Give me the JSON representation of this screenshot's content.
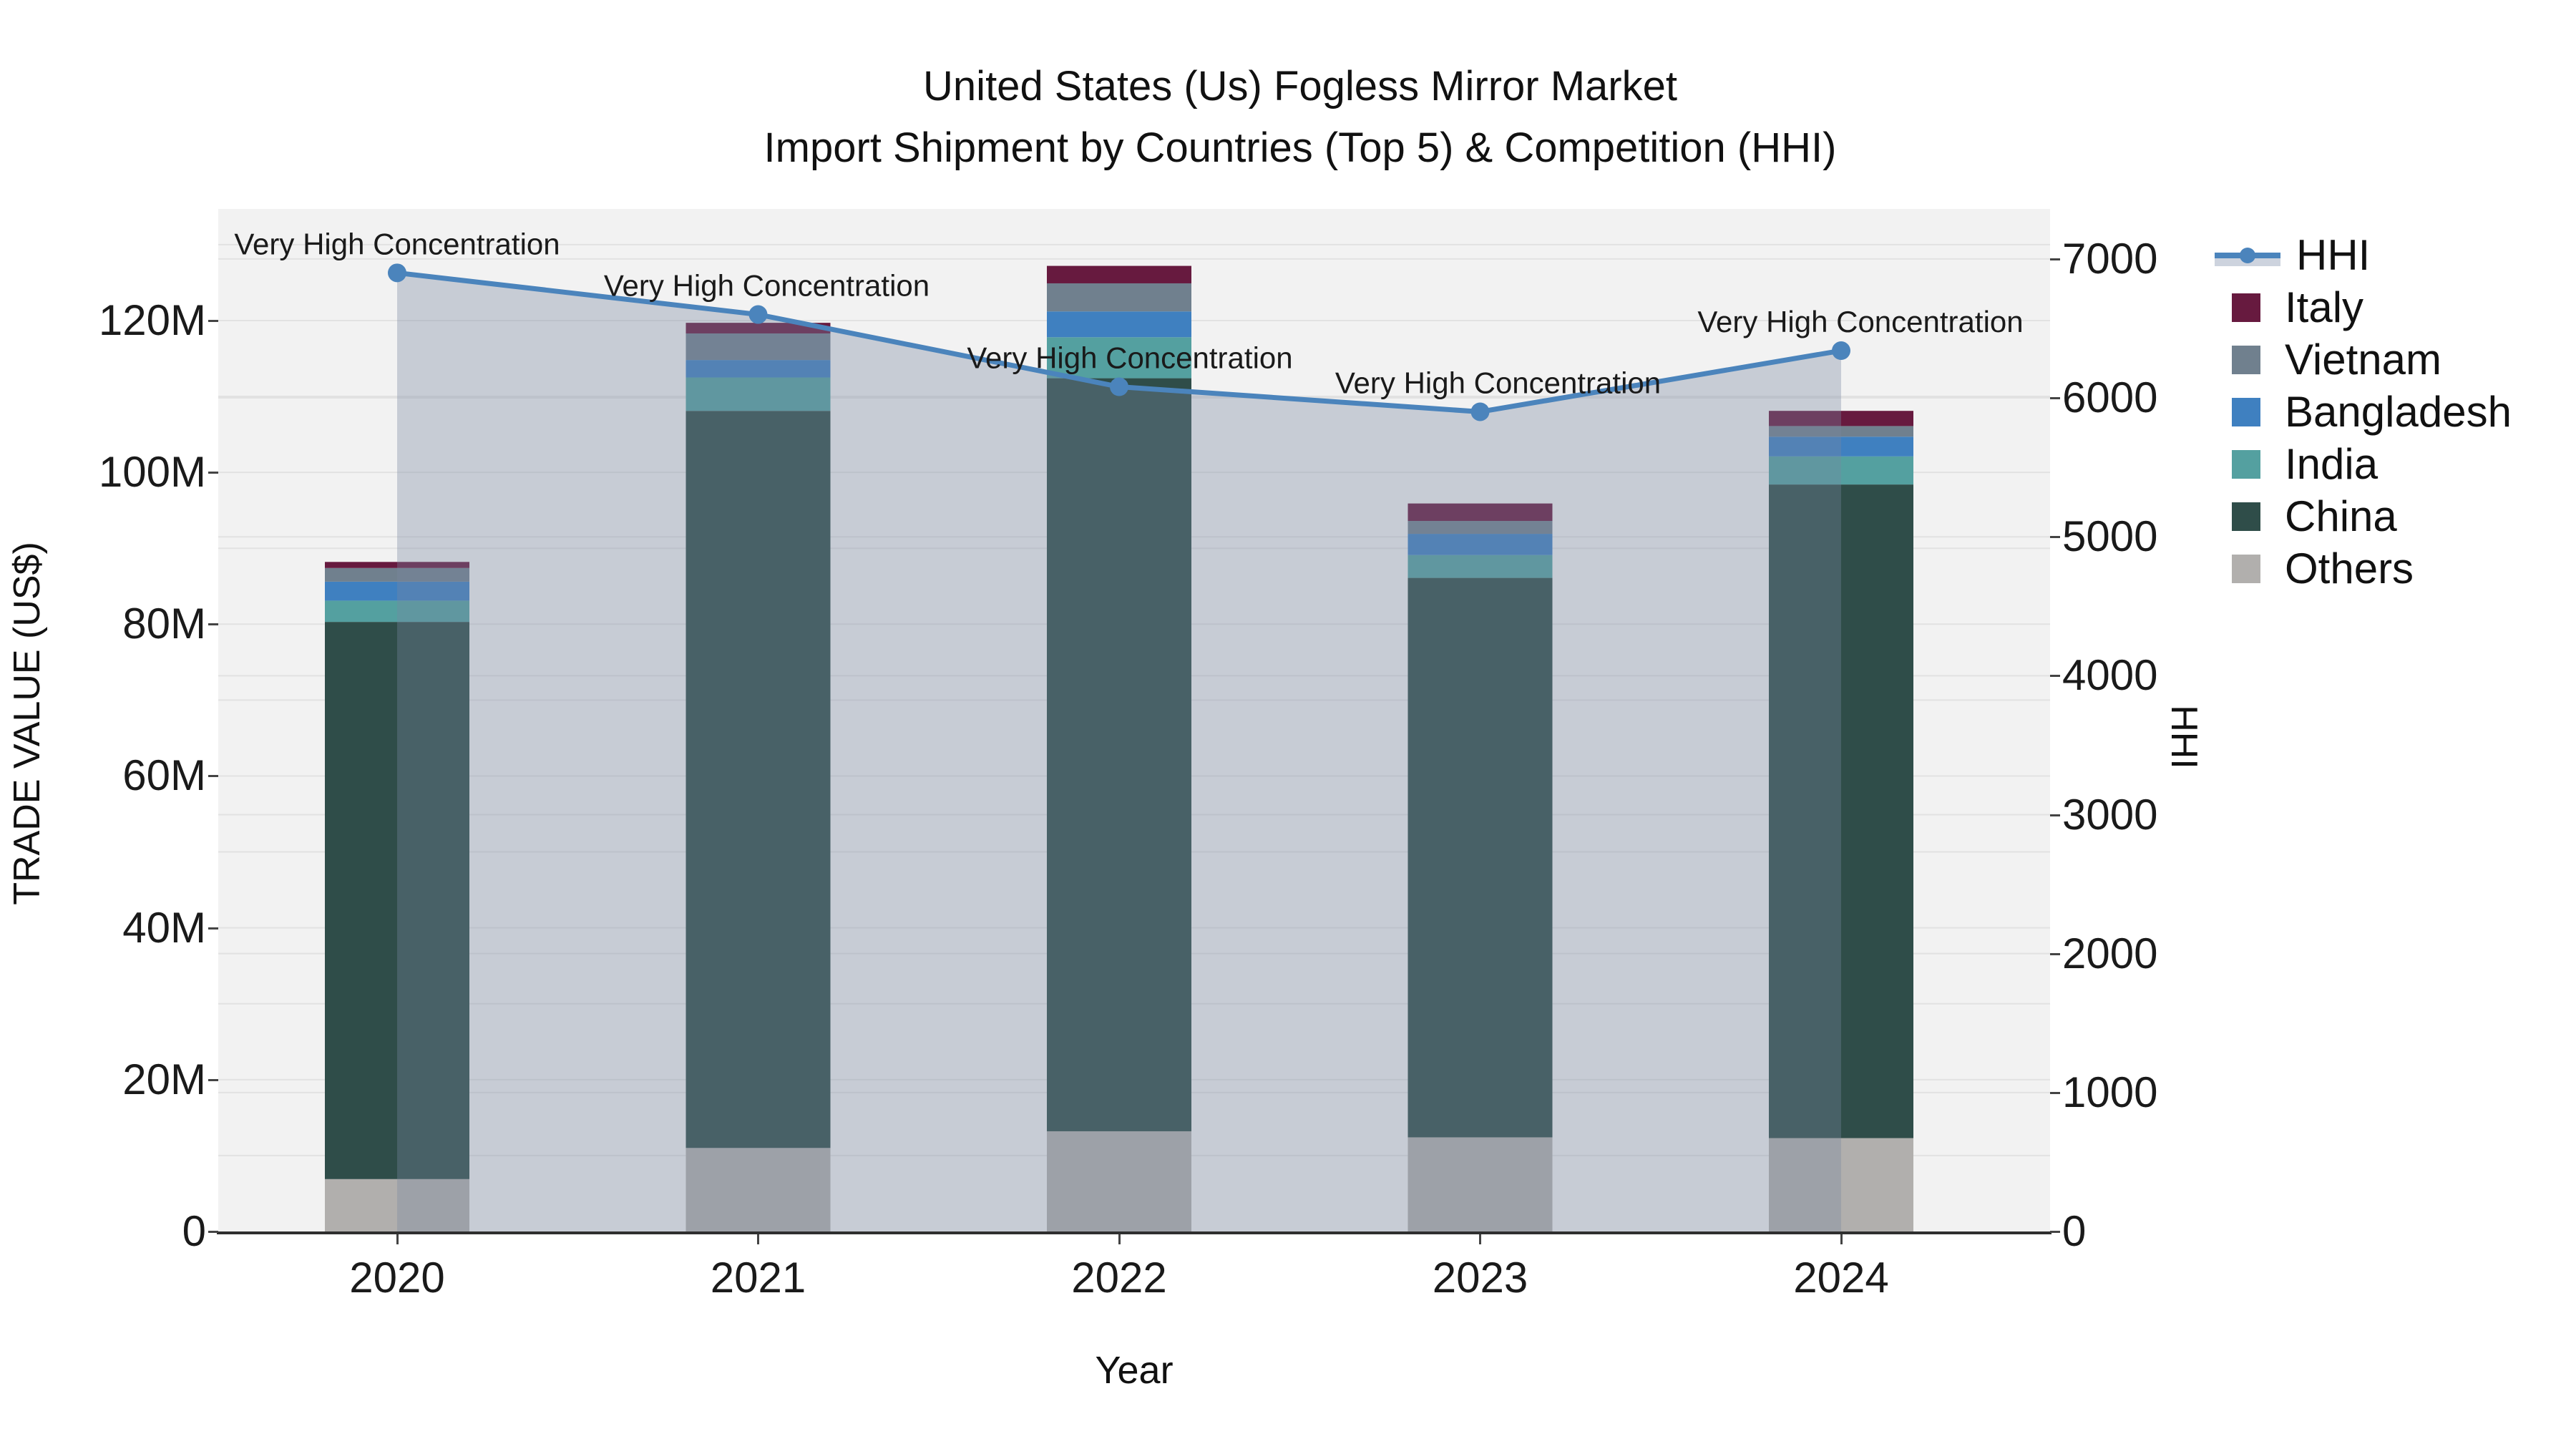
{
  "title": {
    "line1": "United States (Us) Fogless Mirror Market",
    "line2": "Import Shipment by Countries (Top 5) & Competition (HHI)"
  },
  "axes": {
    "left_title": "TRADE VALUE (US$)",
    "right_title": "HHI",
    "x_title": "Year",
    "left_tick_labels": [
      "0",
      "20M",
      "40M",
      "60M",
      "80M",
      "100M",
      "120M"
    ],
    "left_tick_values": [
      0,
      20,
      40,
      60,
      80,
      100,
      120
    ],
    "right_tick_labels": [
      "0",
      "1000",
      "2000",
      "3000",
      "4000",
      "5000",
      "6000",
      "7000"
    ],
    "right_tick_values": [
      0,
      1000,
      2000,
      3000,
      4000,
      5000,
      6000,
      7000
    ]
  },
  "legend": [
    {
      "label": "HHI",
      "color": "#4B84BC",
      "type": "line"
    },
    {
      "label": "Italy",
      "color": "#671A3F",
      "type": "swatch"
    },
    {
      "label": "Vietnam",
      "color": "#70808E",
      "type": "swatch"
    },
    {
      "label": "Bangladesh",
      "color": "#3F80C0",
      "type": "swatch"
    },
    {
      "label": "India",
      "color": "#54A0A0",
      "type": "swatch"
    },
    {
      "label": "China",
      "color": "#2F4D49",
      "type": "swatch"
    },
    {
      "label": "Others",
      "color": "#B1AFAD",
      "type": "swatch"
    }
  ],
  "chart_data": {
    "type": "bar",
    "stacked": true,
    "overlay": "line",
    "categories": [
      "2020",
      "2021",
      "2022",
      "2023",
      "2024"
    ],
    "value_unit": "M US$ (trade value, left axis)",
    "series": [
      {
        "name": "Others",
        "color": "#B1AFAD",
        "values": [
          6.9,
          11.0,
          13.2,
          12.4,
          12.3
        ]
      },
      {
        "name": "China",
        "color": "#2F4D49",
        "values": [
          73.4,
          97.1,
          99.2,
          73.7,
          86.1
        ]
      },
      {
        "name": "India",
        "color": "#54A0A0",
        "values": [
          2.8,
          4.4,
          5.4,
          3.0,
          3.7
        ]
      },
      {
        "name": "Bangladesh",
        "color": "#3F80C0",
        "values": [
          2.5,
          2.3,
          3.4,
          2.8,
          2.6
        ]
      },
      {
        "name": "Vietnam",
        "color": "#70808E",
        "values": [
          1.8,
          3.5,
          3.7,
          1.7,
          1.4
        ]
      },
      {
        "name": "Italy",
        "color": "#671A3F",
        "values": [
          0.8,
          1.4,
          2.3,
          2.3,
          2.0
        ]
      }
    ],
    "bar_totals": [
      88.2,
      119.7,
      127.2,
      95.9,
      108.1
    ],
    "line_series": {
      "name": "HHI",
      "axis": "right",
      "color": "#4B84BC",
      "area_color": "rgba(120,135,160,0.35)",
      "values": [
        6900,
        6600,
        6080,
        5900,
        6340
      ]
    },
    "annotations": [
      {
        "text": "Very High Concentration",
        "dx": 0
      },
      {
        "text": "Very High Concentration",
        "dx": 12
      },
      {
        "text": "Very High Concentration",
        "dx": 15
      },
      {
        "text": "Very High Concentration",
        "dx": 25
      },
      {
        "text": "Very High Concentration",
        "dx": 27
      }
    ],
    "ylim_left": [
      0,
      134.7
    ],
    "ylim_right": [
      0,
      7360
    ],
    "grid": true,
    "legend_position": "right"
  }
}
